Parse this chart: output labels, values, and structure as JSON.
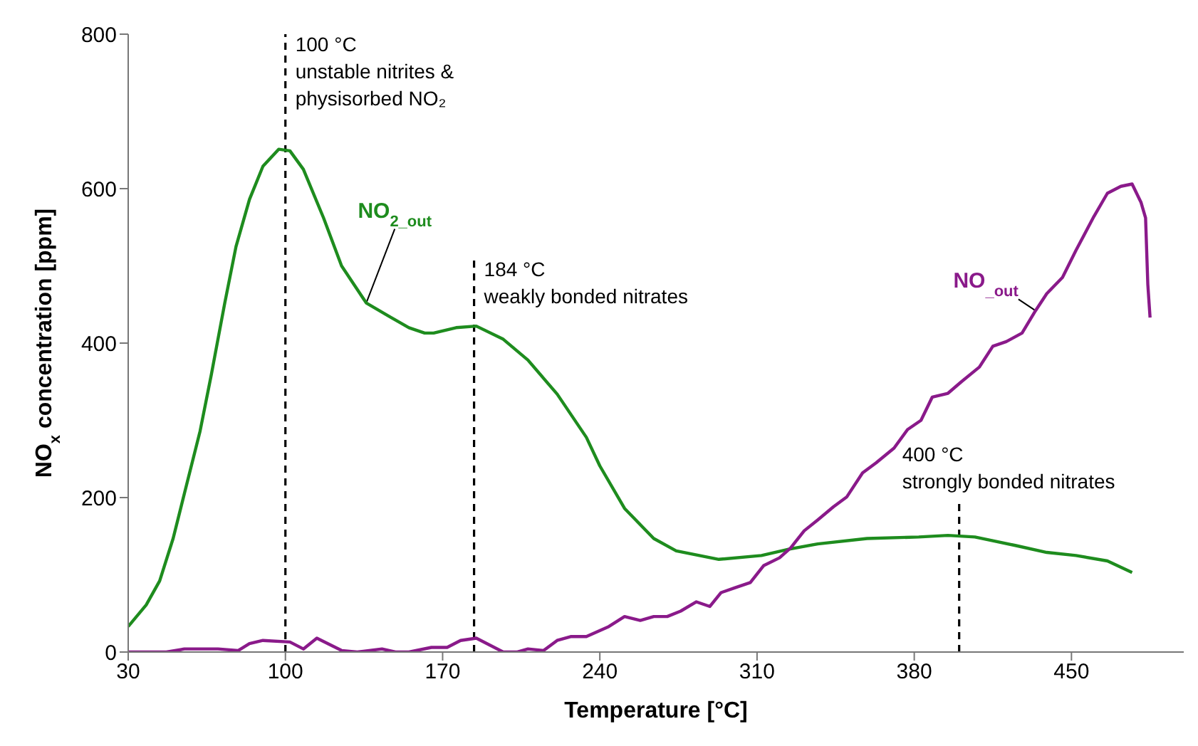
{
  "chart_data": {
    "type": "line",
    "xlabel": "Temperature [°C]",
    "ylabel": "NO$_{x}$ concentration [ppm]",
    "xlim": [
      30,
      500
    ],
    "xticks": [
      30,
      100,
      170,
      240,
      310,
      380,
      450
    ],
    "ylim": [
      0,
      800
    ],
    "yticks": [
      0,
      200,
      400,
      600,
      800
    ],
    "grid": false,
    "legend": false,
    "marker": "none",
    "line_style": "solid",
    "series": [
      {
        "name": "NO$_{2_out}$",
        "color": "#1e8c1e",
        "x": [
          30,
          38,
          44,
          50,
          55,
          62,
          67,
          73,
          78,
          84,
          90,
          97,
          102,
          108,
          117,
          125,
          136,
          146,
          155,
          162,
          166,
          176,
          185,
          197,
          208,
          221,
          234,
          240,
          251,
          264,
          274,
          293,
          312,
          324,
          337,
          359,
          382,
          395,
          407,
          425,
          439,
          452,
          466,
          477
        ],
        "values": [
          33,
          61,
          92,
          147,
          205,
          286,
          359,
          452,
          525,
          586,
          629,
          651,
          649,
          625,
          562,
          500,
          452,
          435,
          420,
          413,
          413,
          420,
          422,
          405,
          378,
          334,
          278,
          241,
          186,
          147,
          131,
          120,
          125,
          133,
          140,
          147,
          149,
          151,
          149,
          138,
          129,
          125,
          118,
          103
        ]
      },
      {
        "name": "NO$_{_out}$",
        "color": "#8a1a8a",
        "x": [
          30,
          47,
          55,
          70,
          79,
          84,
          90,
          102,
          108,
          114,
          125,
          132,
          143,
          149,
          155,
          165,
          172,
          178,
          185,
          197,
          203,
          208,
          215,
          221,
          227,
          234,
          244,
          251,
          258,
          264,
          270,
          276,
          283,
          289,
          294,
          300,
          307,
          313,
          320,
          325,
          331,
          337,
          344,
          350,
          357,
          363,
          371,
          377,
          383,
          388,
          395,
          401,
          409,
          415,
          421,
          428,
          434,
          439,
          446,
          452,
          460,
          466,
          472,
          477,
          481,
          483,
          484,
          485
        ],
        "values": [
          0,
          0,
          4,
          4,
          2,
          11,
          15,
          13,
          4,
          18,
          2,
          0,
          4,
          0,
          0,
          6,
          6,
          15,
          18,
          0,
          0,
          4,
          2,
          15,
          20,
          20,
          33,
          46,
          41,
          46,
          46,
          53,
          65,
          59,
          77,
          83,
          90,
          112,
          122,
          135,
          157,
          171,
          188,
          201,
          232,
          245,
          264,
          288,
          300,
          330,
          335,
          350,
          369,
          396,
          402,
          413,
          442,
          464,
          485,
          520,
          564,
          594,
          603,
          606,
          582,
          562,
          476,
          433
        ]
      }
    ],
    "ref_lines": [
      {
        "axis": "x",
        "value": 100,
        "label": "100 °C\nunstable nitrites &\nphysisorbed NO₂",
        "line_style": "dashed",
        "color": "#000000"
      },
      {
        "axis": "x",
        "value": 184,
        "label": "184 °C\nweakly bonded nitrates",
        "line_style": "dashed",
        "color": "#000000"
      },
      {
        "axis": "x",
        "value": 400,
        "label": "400 °C\nstrongly bonded nitrates",
        "line_style": "dashed",
        "color": "#000000"
      }
    ]
  }
}
